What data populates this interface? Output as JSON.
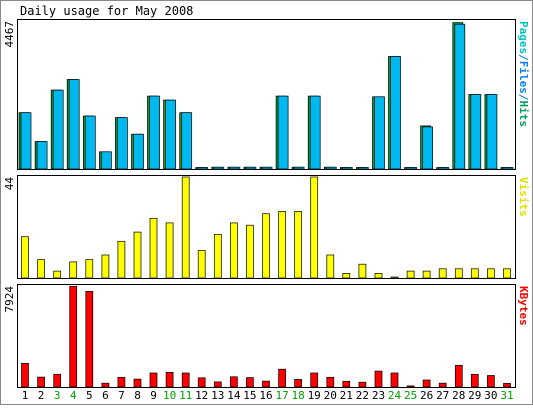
{
  "chart_data": {
    "type": "bar",
    "title": "Daily usage for May 2008",
    "categories": [
      "1",
      "2",
      "3",
      "4",
      "5",
      "6",
      "7",
      "8",
      "9",
      "10",
      "11",
      "12",
      "13",
      "14",
      "15",
      "16",
      "17",
      "18",
      "19",
      "20",
      "21",
      "22",
      "23",
      "24",
      "25",
      "26",
      "27",
      "28",
      "29",
      "30",
      "31"
    ],
    "weekend_days": [
      "3",
      "4",
      "10",
      "11",
      "17",
      "18",
      "24",
      "25",
      "31"
    ],
    "panels": [
      {
        "id": "pages-files-hits",
        "ymax_label": "4467",
        "ylim": [
          0,
          4467
        ],
        "right_label_parts": [
          {
            "text": "Pages",
            "color": "#00c0c0"
          },
          {
            "text": "/",
            "color": "#0080ff"
          },
          {
            "text": "Files",
            "color": "#0080ff"
          },
          {
            "text": "/",
            "color": "#0080ff"
          },
          {
            "text": "Hits",
            "color": "#00a060"
          }
        ],
        "series": [
          {
            "name": "Hits",
            "color": "#00a030",
            "values": [
              1700,
              830,
              2380,
              2700,
              1600,
              520,
              1550,
              1050,
              2200,
              2080,
              1700,
              45,
              55,
              55,
              55,
              55,
              2200,
              55,
              2200,
              55,
              45,
              45,
              2180,
              3400,
              45,
              1300,
              45,
              4420,
              2250,
              2250,
              45
            ]
          },
          {
            "name": "Files",
            "color": "#00b8f0",
            "values": [
              1700,
              830,
              2380,
              2700,
              1600,
              520,
              1550,
              1050,
              2200,
              2080,
              1700,
              45,
              55,
              55,
              55,
              55,
              2200,
              55,
              2200,
              55,
              45,
              45,
              2180,
              3400,
              45,
              1270,
              45,
              4370,
              2250,
              2250,
              45
            ]
          }
        ]
      },
      {
        "id": "visits",
        "ymax_label": "44",
        "ylim": [
          0,
          44
        ],
        "right_label_parts": [
          {
            "text": "Visits",
            "color": "#e0e000"
          }
        ],
        "series": [
          {
            "name": "Visits",
            "color": "#ffff00",
            "values": [
              18,
              8,
              3,
              7,
              8,
              10,
              16,
              20,
              26,
              24,
              44,
              12,
              19,
              24,
              23,
              28,
              29,
              29,
              44,
              10,
              2,
              6,
              2,
              0,
              3,
              3,
              4,
              4,
              4,
              4,
              4
            ]
          }
        ]
      },
      {
        "id": "kbytes",
        "ymax_label": "7924",
        "ylim": [
          0,
          7924
        ],
        "right_label_parts": [
          {
            "text": "KBytes",
            "color": "#ff0000"
          }
        ],
        "series": [
          {
            "name": "KBytes",
            "color": "#ff0000",
            "values": [
              1850,
              780,
              1000,
              7900,
              7500,
              300,
              760,
              620,
              1100,
              1150,
              1100,
              720,
              400,
              800,
              740,
              460,
              1400,
              600,
              1100,
              760,
              450,
              380,
              1250,
              1100,
              90,
              550,
              300,
              1700,
              1000,
              900,
              280
            ]
          }
        ]
      }
    ],
    "colors": {
      "background": "#ffffff",
      "plot_background": "#ffffff",
      "frame": "#000000",
      "weekday_label": "#000000",
      "weekend_label": "#00a000",
      "edge": "#000000"
    }
  }
}
